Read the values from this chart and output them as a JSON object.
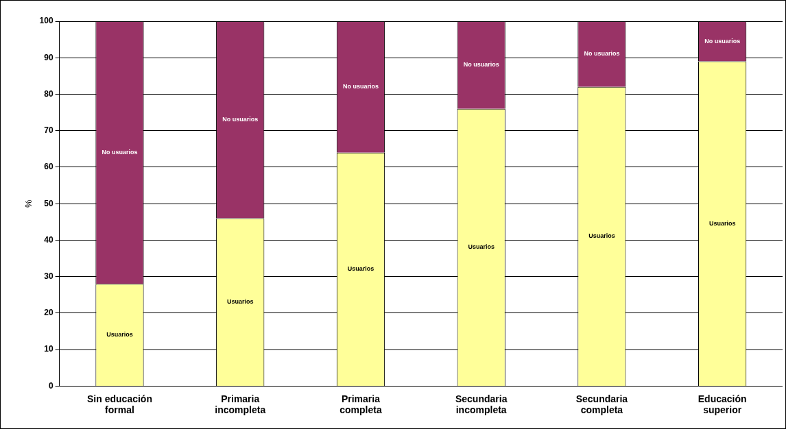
{
  "chart_data": {
    "type": "bar",
    "stacked": true,
    "ylabel": "%",
    "categories": [
      "Sin educación formal",
      "Primaria incompleta",
      "Primaria completa",
      "Secundaria incompleta",
      "Secundaria completa",
      "Educación superior"
    ],
    "series": [
      {
        "name": "Usuarios",
        "color": "#ffff99",
        "values": [
          28,
          46,
          64,
          76,
          82,
          89
        ]
      },
      {
        "name": "No usuarios",
        "color": "#993366",
        "values": [
          72,
          54,
          36,
          24,
          18,
          11
        ]
      }
    ],
    "ylim": [
      0,
      100
    ],
    "yticks": [
      0,
      10,
      20,
      30,
      40,
      50,
      60,
      70,
      80,
      90,
      100
    ],
    "grid": "y",
    "legend": false
  }
}
